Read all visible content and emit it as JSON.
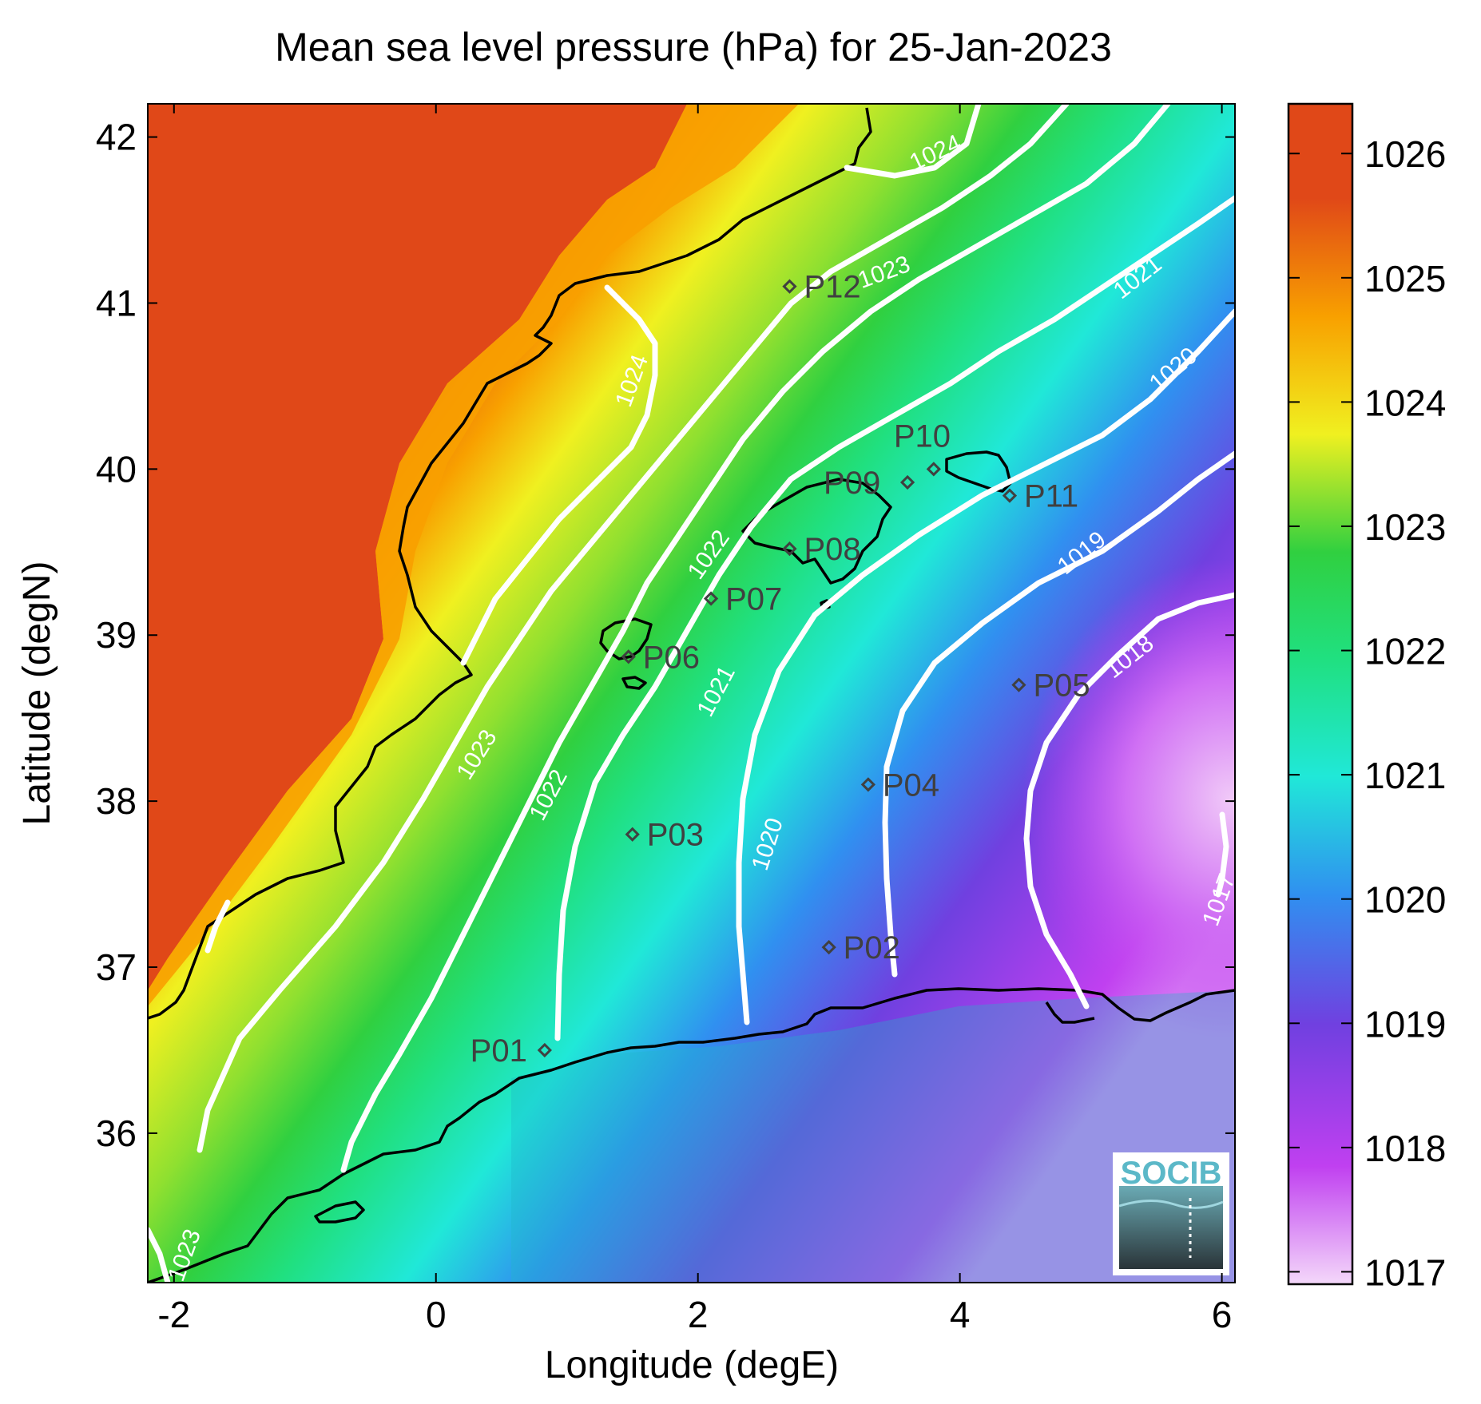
{
  "chart_data": {
    "type": "heatmap",
    "title": "Mean sea level pressure (hPa) for 25-Jan-2023",
    "xlabel": "Longitude (degE)",
    "ylabel": "Latitude (degN)",
    "xlim": [
      -2.2,
      6.1
    ],
    "ylim": [
      35.1,
      42.2
    ],
    "xticks": [
      -2,
      0,
      2,
      4,
      6
    ],
    "xtick_labels": [
      "-2",
      "0",
      "2",
      "4",
      "6"
    ],
    "yticks": [
      36,
      37,
      38,
      39,
      40,
      41,
      42
    ],
    "ytick_labels": [
      "36",
      "37",
      "38",
      "39",
      "40",
      "41",
      "42"
    ],
    "colorbar": {
      "ticks": [
        1017,
        1018,
        1019,
        1020,
        1021,
        1022,
        1023,
        1024,
        1025,
        1026
      ],
      "tick_labels": [
        "1017",
        "1018",
        "1019",
        "1020",
        "1021",
        "1022",
        "1023",
        "1024",
        "1025",
        "1026"
      ],
      "range": [
        1016.9,
        1026.4
      ],
      "colors": [
        "#f0c8f8",
        "#c040f0",
        "#7040e0",
        "#3090f0",
        "#20e8d8",
        "#20e080",
        "#30d040",
        "#f0f020",
        "#f8a000",
        "#e04818"
      ]
    },
    "contour_labels": [
      "1017",
      "1018",
      "1019",
      "1020",
      "1020",
      "1021",
      "1021",
      "1022",
      "1022",
      "1023",
      "1023",
      "1023",
      "1024",
      "1024",
      "1024"
    ],
    "stations": [
      {
        "name": "P01",
        "lon": 0.83,
        "lat": 36.5
      },
      {
        "name": "P02",
        "lon": 3.0,
        "lat": 37.12
      },
      {
        "name": "P03",
        "lon": 1.5,
        "lat": 37.8
      },
      {
        "name": "P04",
        "lon": 3.3,
        "lat": 38.1
      },
      {
        "name": "P05",
        "lon": 4.45,
        "lat": 38.7
      },
      {
        "name": "P06",
        "lon": 1.47,
        "lat": 38.87
      },
      {
        "name": "P07",
        "lon": 2.1,
        "lat": 39.22
      },
      {
        "name": "P08",
        "lon": 2.7,
        "lat": 39.52
      },
      {
        "name": "P09",
        "lon": 3.6,
        "lat": 39.92
      },
      {
        "name": "P10",
        "lon": 3.8,
        "lat": 40.0
      },
      {
        "name": "P11",
        "lon": 4.38,
        "lat": 39.84
      },
      {
        "name": "P12",
        "lon": 2.7,
        "lat": 41.1
      }
    ],
    "grid": false
  },
  "logo": {
    "text": "SOCIB"
  }
}
